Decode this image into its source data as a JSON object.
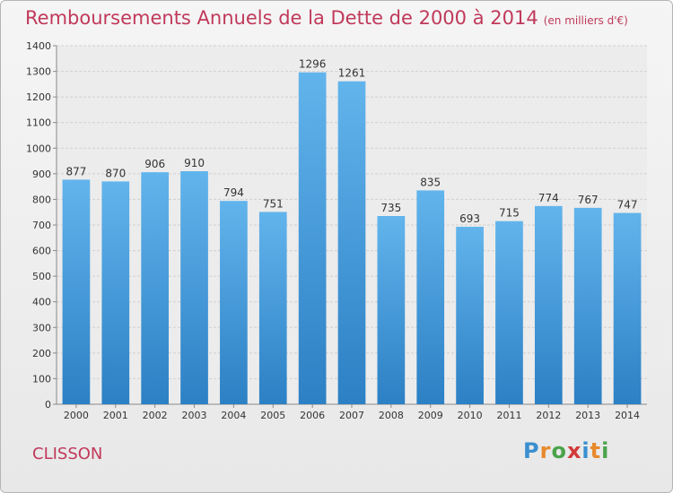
{
  "title": "Remboursements Annuels de la Dette de 2000 à 2014",
  "unit_note": "(en milliers d'€)",
  "place": "CLISSON",
  "logo": {
    "text": "Proxiti",
    "letters": [
      {
        "ch": "P",
        "color": "#3b8fcf"
      },
      {
        "ch": "r",
        "color": "#e8892b"
      },
      {
        "ch": "o",
        "color": "#4aa34a"
      },
      {
        "ch": "x",
        "color": "#d23a3a"
      },
      {
        "ch": "i",
        "color": "#3b8fcf"
      },
      {
        "ch": "t",
        "color": "#e8892b"
      },
      {
        "ch": "i",
        "color": "#4aa34a"
      }
    ]
  },
  "colors": {
    "title": "#c0395a",
    "bar_top": "#62b4ec",
    "bar_bottom": "#2c80c4",
    "grid": "#d0d0d0",
    "text": "#333333"
  },
  "chart_data": {
    "type": "bar",
    "title": "Remboursements Annuels de la Dette de 2000 à 2014",
    "xlabel": "",
    "ylabel": "",
    "categories": [
      "2000",
      "2001",
      "2002",
      "2003",
      "2004",
      "2005",
      "2006",
      "2007",
      "2008",
      "2009",
      "2010",
      "2011",
      "2012",
      "2013",
      "2014"
    ],
    "values": [
      877,
      870,
      906,
      910,
      794,
      751,
      1296,
      1261,
      735,
      835,
      693,
      715,
      774,
      767,
      747
    ],
    "ylim": [
      0,
      1400
    ],
    "yticks": [
      0,
      100,
      200,
      300,
      400,
      500,
      600,
      700,
      800,
      900,
      1000,
      1100,
      1200,
      1300,
      1400
    ],
    "grid": true,
    "legend": "none"
  }
}
